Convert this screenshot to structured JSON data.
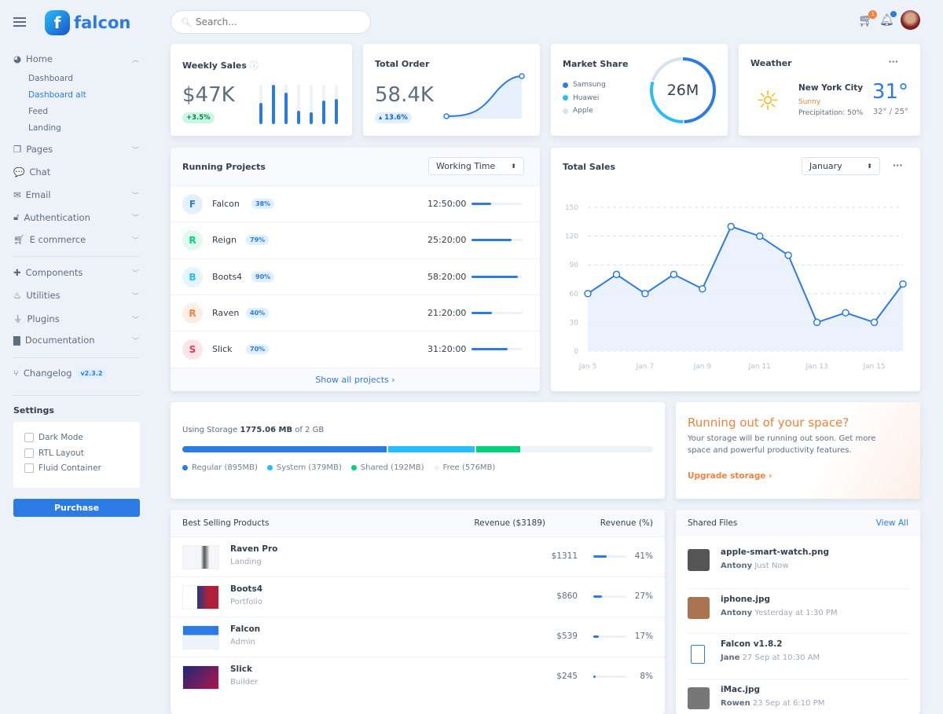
{
  "brand": "falcon",
  "search": {
    "placeholder": "Search..."
  },
  "notifications": {
    "cart_count": "1"
  },
  "sidebar": {
    "home": "Home",
    "home_sub": [
      "Dashboard",
      "Dashboard alt",
      "Feed",
      "Landing"
    ],
    "items": [
      "Pages",
      "Chat",
      "Email",
      "Authentication",
      "E commerce"
    ],
    "items2": [
      "Components",
      "Utilities",
      "Plugins",
      "Documentation"
    ],
    "changelog": "Changelog",
    "version": "v2.3.2",
    "settings_title": "Settings",
    "settings": [
      "Dark Mode",
      "RTL Layout",
      "Fluid Container"
    ],
    "purchase": "Purchase"
  },
  "weekly": {
    "title": "Weekly Sales",
    "value": "$47K",
    "change": "+3.5%",
    "bars": [
      0.55,
      1,
      0.8,
      0.35,
      0.3,
      0.6,
      0.65
    ]
  },
  "order": {
    "title": "Total Order",
    "value": "58.4K",
    "change": "13.6%"
  },
  "market": {
    "title": "Market Share",
    "value": "26M",
    "legend": [
      {
        "name": "Samsung",
        "color": "#2c7be5",
        "share": 0.5
      },
      {
        "name": "Huawei",
        "color": "#27bcfd",
        "share": 0.3
      },
      {
        "name": "Apple",
        "color": "#d8e2ef",
        "share": 0.2
      }
    ]
  },
  "weather": {
    "title": "Weather",
    "city": "New York City",
    "condition": "Sunny",
    "precip": "Precipitation: 50%",
    "temp": "31°",
    "range": "32° / 25°"
  },
  "projects": {
    "title": "Running Projects",
    "select": "Working Time",
    "show_all": "Show all projects ›",
    "rows": [
      {
        "letter": "F",
        "name": "Falcon",
        "pct": "38%",
        "time": "12:50:00",
        "progress": 38,
        "color": "#2c7be5",
        "bg": "#e6effc"
      },
      {
        "letter": "R",
        "name": "Reign",
        "pct": "79%",
        "time": "25:20:00",
        "progress": 79,
        "color": "#00d27a",
        "bg": "#e0faef"
      },
      {
        "letter": "B",
        "name": "Boots4",
        "pct": "90%",
        "time": "58:20:00",
        "progress": 90,
        "color": "#27bcfd",
        "bg": "#e3f6ff"
      },
      {
        "letter": "R",
        "name": "Raven",
        "pct": "40%",
        "time": "21:20:00",
        "progress": 40,
        "color": "#f5803e",
        "bg": "#feefe6"
      },
      {
        "letter": "S",
        "name": "Slick",
        "pct": "70%",
        "time": "31:20:00",
        "progress": 70,
        "color": "#e63757",
        "bg": "#fce6ea"
      }
    ]
  },
  "chart_data": {
    "type": "line",
    "title": "Total Sales",
    "select": "January",
    "x": [
      "Jan 5",
      "Jan 6",
      "Jan 7",
      "Jan 8",
      "Jan 9",
      "Jan 10",
      "Jan 11",
      "Jan 12",
      "Jan 13",
      "Jan 14",
      "Jan 15",
      "Jan 16"
    ],
    "xticks": [
      "Jan 5",
      "Jan 7",
      "Jan 9",
      "Jan 11",
      "Jan 13",
      "Jan 15"
    ],
    "values": [
      60,
      80,
      60,
      80,
      65,
      130,
      120,
      100,
      30,
      40,
      30,
      70
    ],
    "yticks": [
      0,
      30,
      60,
      90,
      120,
      150
    ],
    "ylim": [
      0,
      150
    ],
    "grid": true,
    "color": "#2c7be5"
  },
  "storage": {
    "label": "Using Storage ",
    "used": "1775.06 MB",
    "of": " of 2 GB",
    "segments": [
      {
        "name": "Regular (895MB)",
        "mb": 895,
        "color": "#2c7be5"
      },
      {
        "name": "System (379MB)",
        "mb": 379,
        "color": "#27bcfd"
      },
      {
        "name": "Shared (192MB)",
        "mb": 192,
        "color": "#00d27a"
      },
      {
        "name": "Free (576MB)",
        "mb": 576,
        "color": "#edf2f9"
      }
    ]
  },
  "space": {
    "title": "Running out of your space?",
    "text": "Your storage will be running out soon. Get more space and powerful productivity features.",
    "link": "Upgrade storage ›"
  },
  "products": {
    "title": "Best Selling Products",
    "col1": "Revenue ($3189)",
    "col2": "Revenue (%)",
    "rows": [
      {
        "name": "Raven Pro",
        "cat": "Landing",
        "rev": "$1311",
        "pct": "41%",
        "p": 41
      },
      {
        "name": "Boots4",
        "cat": "Portfolio",
        "rev": "$860",
        "pct": "27%",
        "p": 27
      },
      {
        "name": "Falcon",
        "cat": "Admin",
        "rev": "$539",
        "pct": "17%",
        "p": 17
      },
      {
        "name": "Slick",
        "cat": "Builder",
        "rev": "$245",
        "pct": "8%",
        "p": 8
      }
    ]
  },
  "files": {
    "title": "Shared Files",
    "view_all": "View All",
    "rows": [
      {
        "name": "apple-smart-watch.png",
        "user": "Antony",
        "time": "Just Now"
      },
      {
        "name": "iphone.jpg",
        "user": "Antony",
        "time": "Yesterday at 1:30 PM"
      },
      {
        "name": "Falcon v1.8.2",
        "user": "Jane",
        "time": "27 Sep at 10:30 AM"
      },
      {
        "name": "iMac.jpg",
        "user": "Rowen",
        "time": "23 Sep at 6:10 PM"
      }
    ]
  }
}
